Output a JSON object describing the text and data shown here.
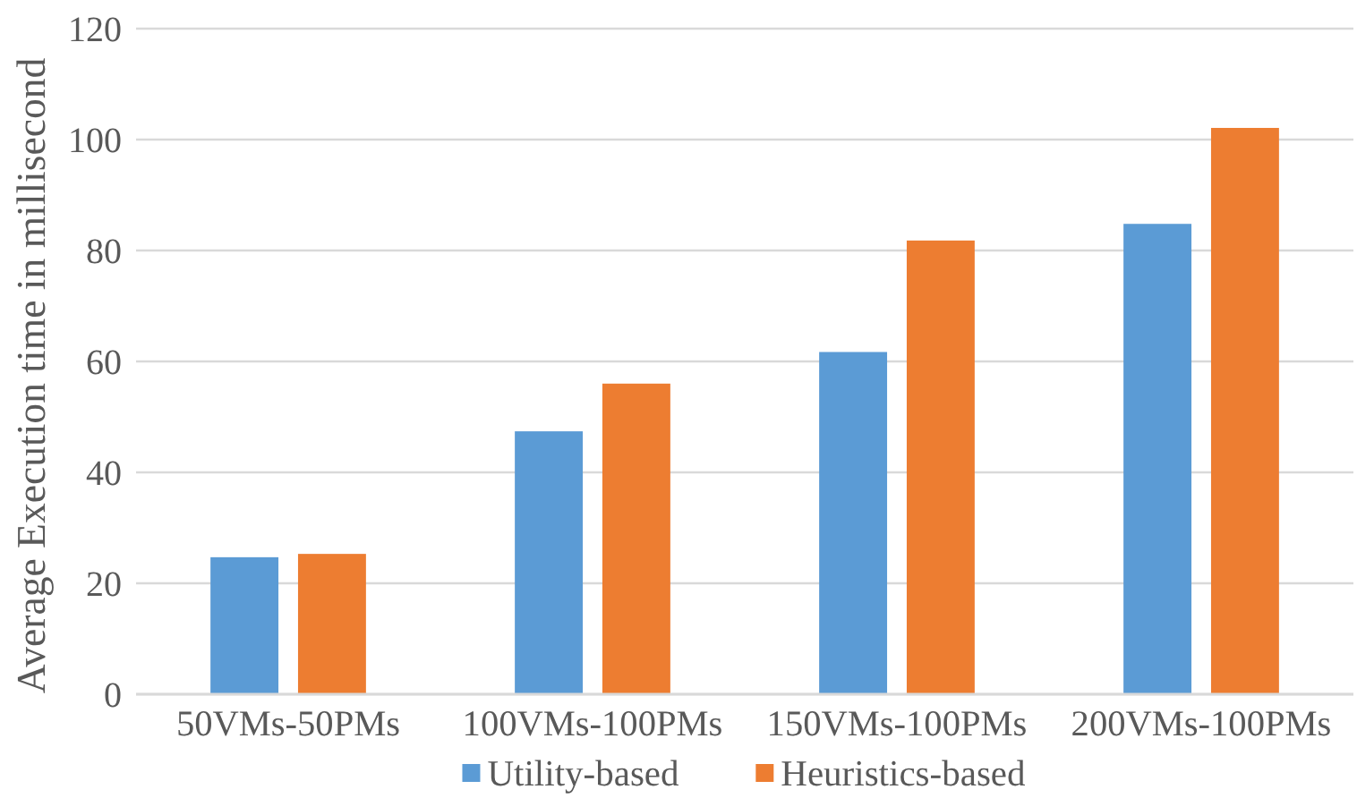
{
  "chart_data": {
    "type": "bar",
    "ylabel": "Average Execution time in millisecond",
    "categories": [
      "50VMs-50PMs",
      "100VMs-100PMs",
      "150VMs-100PMs",
      "200VMs-100PMs"
    ],
    "series": [
      {
        "name": "Utility-based",
        "color": "#5b9bd5",
        "values": [
          24.7,
          47.4,
          61.7,
          84.8
        ]
      },
      {
        "name": "Heuristics-based",
        "color": "#ed7d31",
        "values": [
          25.3,
          56,
          81.8,
          102.1
        ]
      }
    ],
    "ylim": [
      0,
      120
    ],
    "yticks": [
      0,
      20,
      40,
      60,
      80,
      100,
      120
    ],
    "grid": "y",
    "legend": "bottom"
  }
}
